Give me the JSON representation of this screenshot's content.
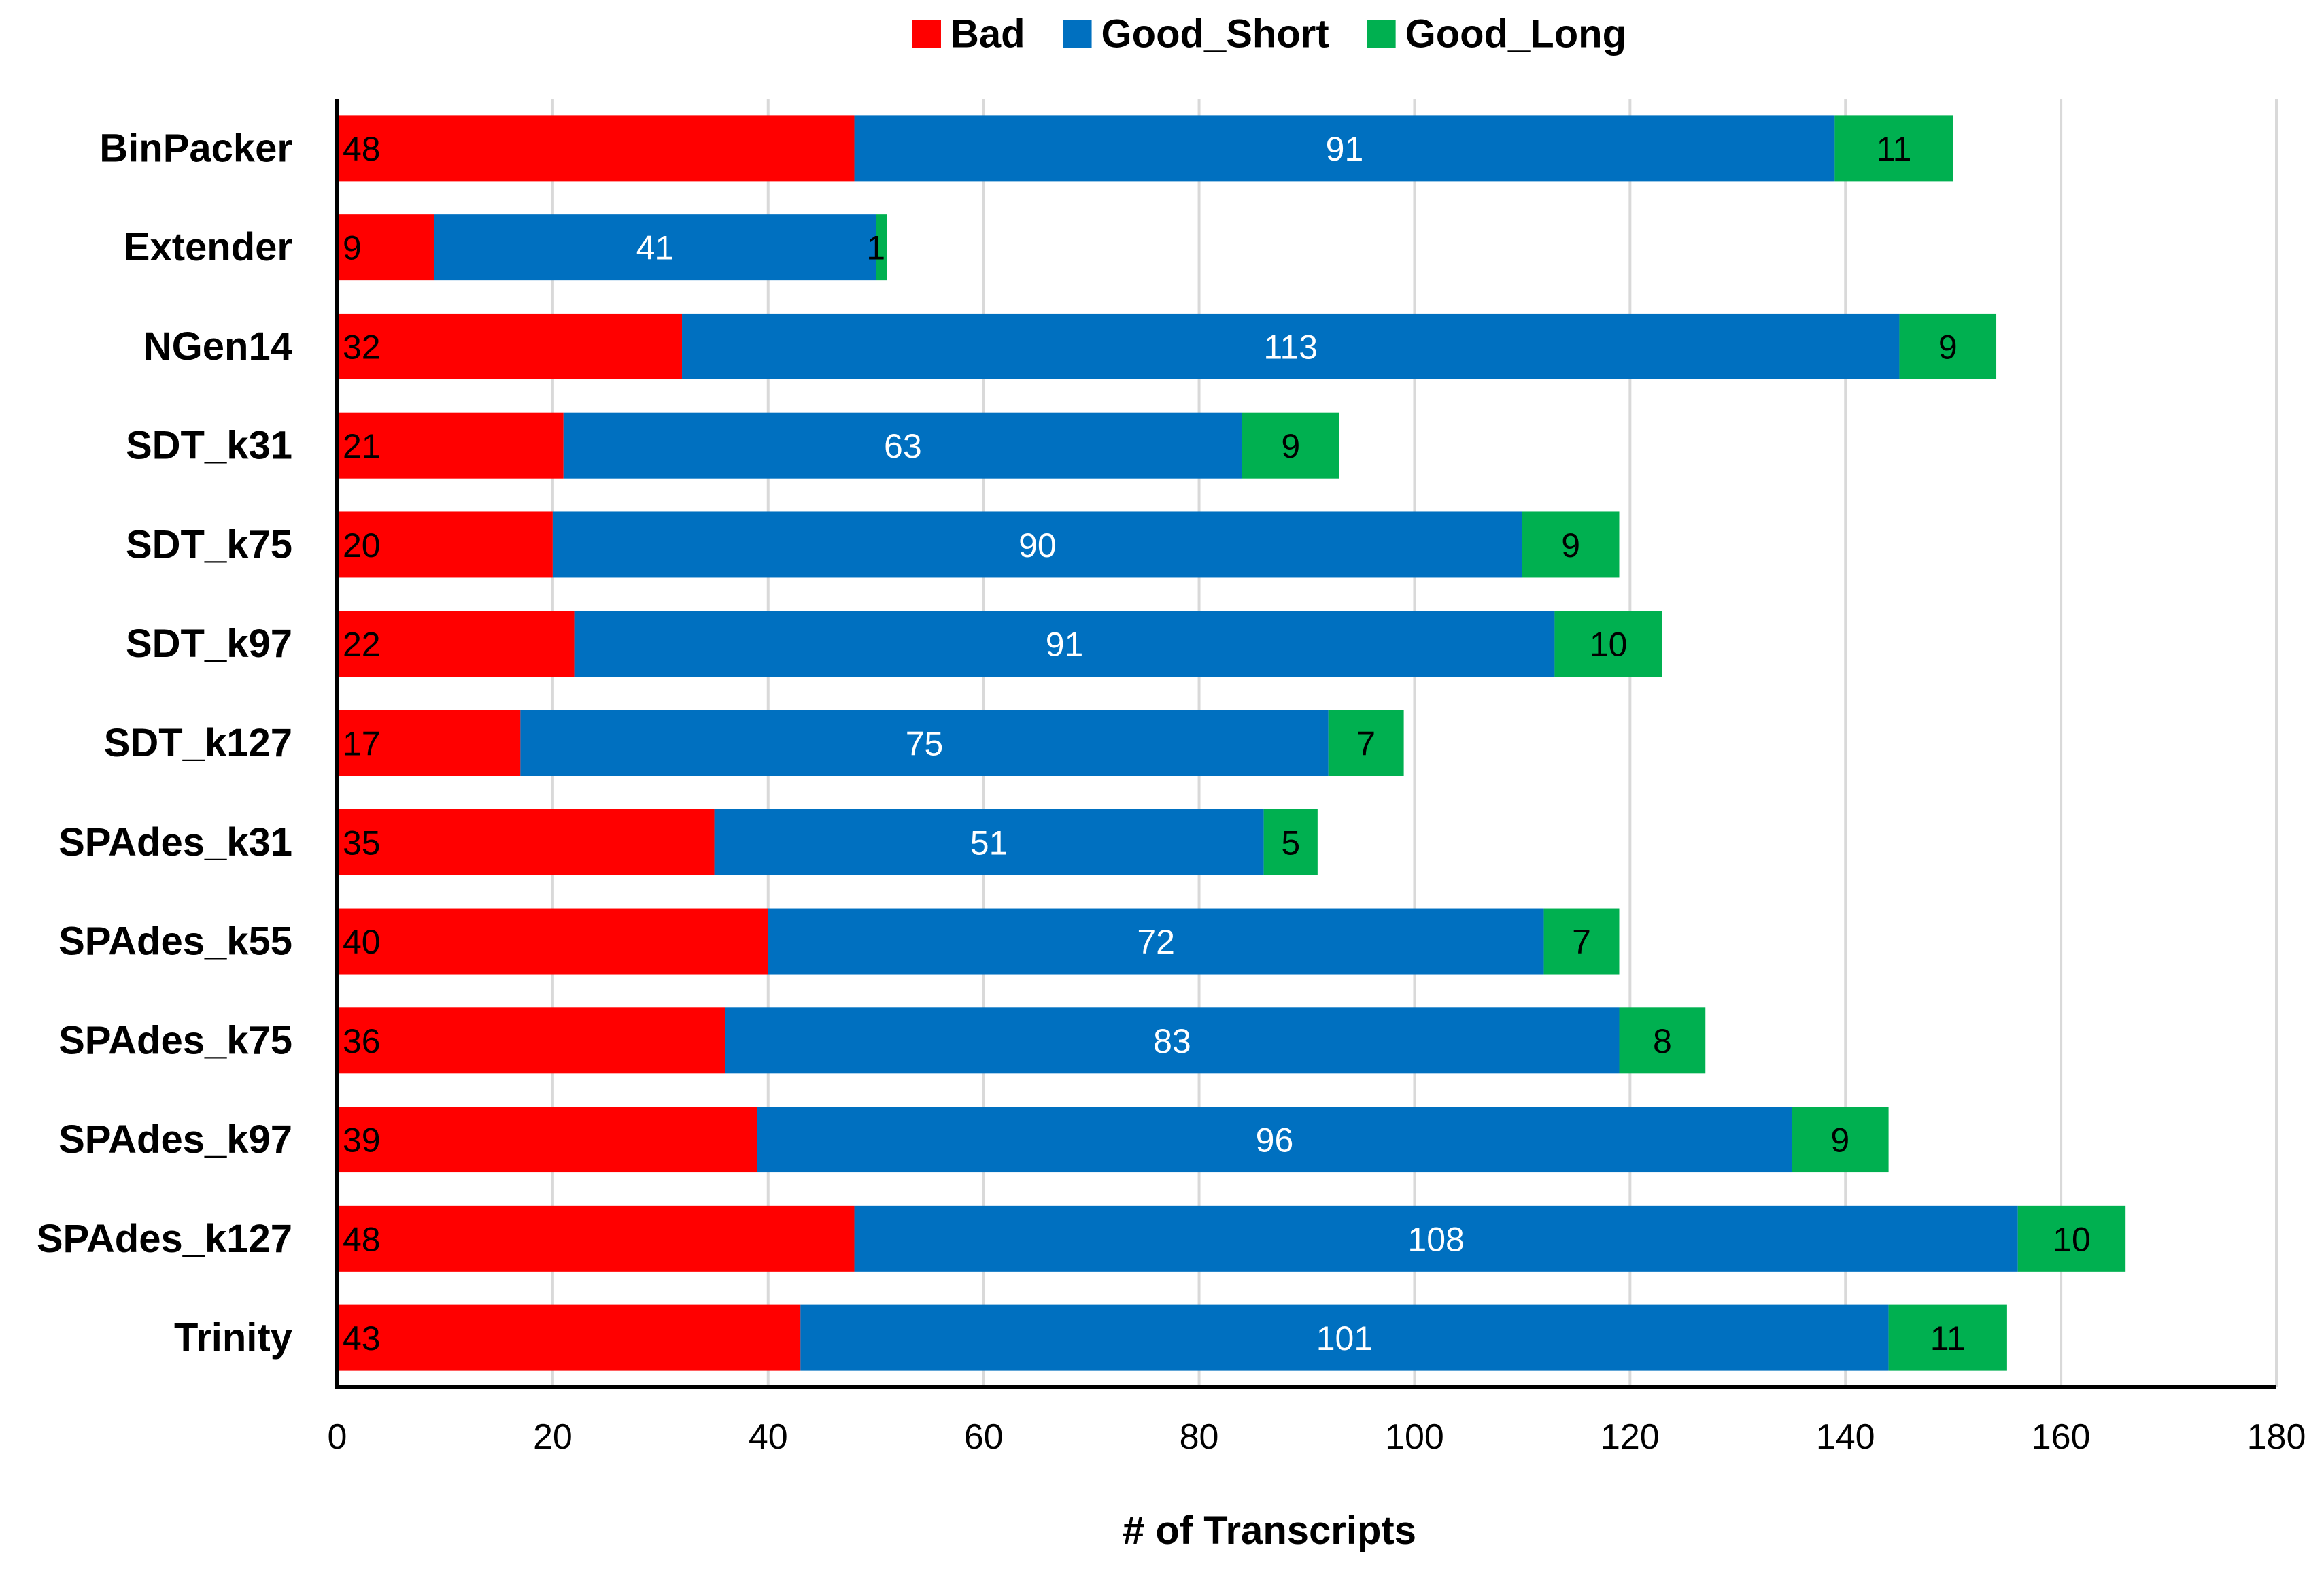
{
  "chart_data": {
    "type": "bar",
    "orientation": "horizontal",
    "stacked": true,
    "title": "",
    "xlabel": "# of Transcripts",
    "ylabel": "",
    "xlim": [
      0,
      180
    ],
    "xticks": [
      0,
      20,
      40,
      60,
      80,
      100,
      120,
      140,
      160,
      180
    ],
    "grid": "vertical",
    "legend_position": "top",
    "categories": [
      "BinPacker",
      "Extender",
      "NGen14",
      "SDT_k31",
      "SDT_k75",
      "SDT_k97",
      "SDT_k127",
      "SPAdes_k31",
      "SPAdes_k55",
      "SPAdes_k75",
      "SPAdes_k97",
      "SPAdes_k127",
      "Trinity"
    ],
    "series": [
      {
        "name": "Bad",
        "color": "#ff0000",
        "label_color": "#000000",
        "values": [
          48,
          9,
          32,
          21,
          20,
          22,
          17,
          35,
          40,
          36,
          39,
          48,
          43
        ]
      },
      {
        "name": "Good_Short",
        "color": "#0070c0",
        "label_color": "#ffffff",
        "values": [
          91,
          41,
          113,
          63,
          90,
          91,
          75,
          51,
          72,
          83,
          96,
          108,
          101
        ]
      },
      {
        "name": "Good_Long",
        "color": "#00b050",
        "label_color": "#000000",
        "values": [
          11,
          1,
          9,
          9,
          9,
          10,
          7,
          5,
          7,
          8,
          9,
          10,
          11
        ]
      }
    ]
  }
}
